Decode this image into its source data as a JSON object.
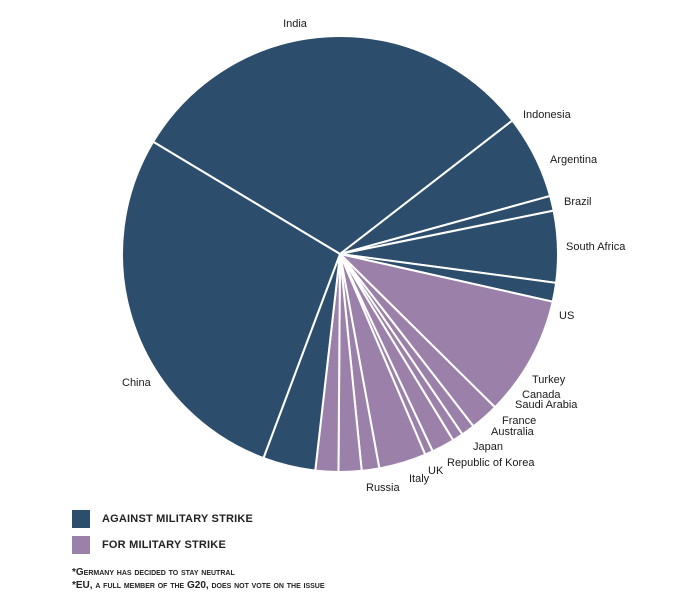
{
  "chart_data": {
    "type": "pie",
    "slices": [
      {
        "label": "India",
        "value": 30.9,
        "group": "against"
      },
      {
        "label": "Indonesia",
        "value": 6.2,
        "group": "against"
      },
      {
        "label": "Argentina",
        "value": 1.1,
        "group": "against"
      },
      {
        "label": "Brazil",
        "value": 5.3,
        "group": "against"
      },
      {
        "label": "South Africa",
        "value": 1.4,
        "group": "against"
      },
      {
        "label": "US",
        "value": 8.9,
        "group": "for"
      },
      {
        "label": "Turkey",
        "value": 2.1,
        "group": "for"
      },
      {
        "label": "Canada",
        "value": 1.0,
        "group": "for"
      },
      {
        "label": "Saudi Arabia",
        "value": 0.8,
        "group": "for"
      },
      {
        "label": "France",
        "value": 1.7,
        "group": "for"
      },
      {
        "label": "Australia",
        "value": 0.6,
        "group": "for"
      },
      {
        "label": "Japan",
        "value": 3.5,
        "group": "for"
      },
      {
        "label": "Republic of Korea",
        "value": 1.3,
        "group": "for"
      },
      {
        "label": "UK",
        "value": 1.7,
        "group": "for"
      },
      {
        "label": "Italy",
        "value": 1.7,
        "group": "for"
      },
      {
        "label": "Russia",
        "value": 3.9,
        "group": "against"
      },
      {
        "label": "China",
        "value": 27.9,
        "group": "against"
      }
    ],
    "colors": {
      "against": "#2c4d6c",
      "for": "#9b80a9",
      "separator": "#ffffff"
    }
  },
  "legend": {
    "items": [
      {
        "label": "AGAINST MILITARY STRIKE",
        "color": "#2c4d6c"
      },
      {
        "label": "FOR MILITARY STRIKE",
        "color": "#9b80a9"
      }
    ]
  },
  "notes": [
    "*Germany has decided to stay neutral",
    "*EU, a full member of the G20, does not vote on the issue"
  ]
}
